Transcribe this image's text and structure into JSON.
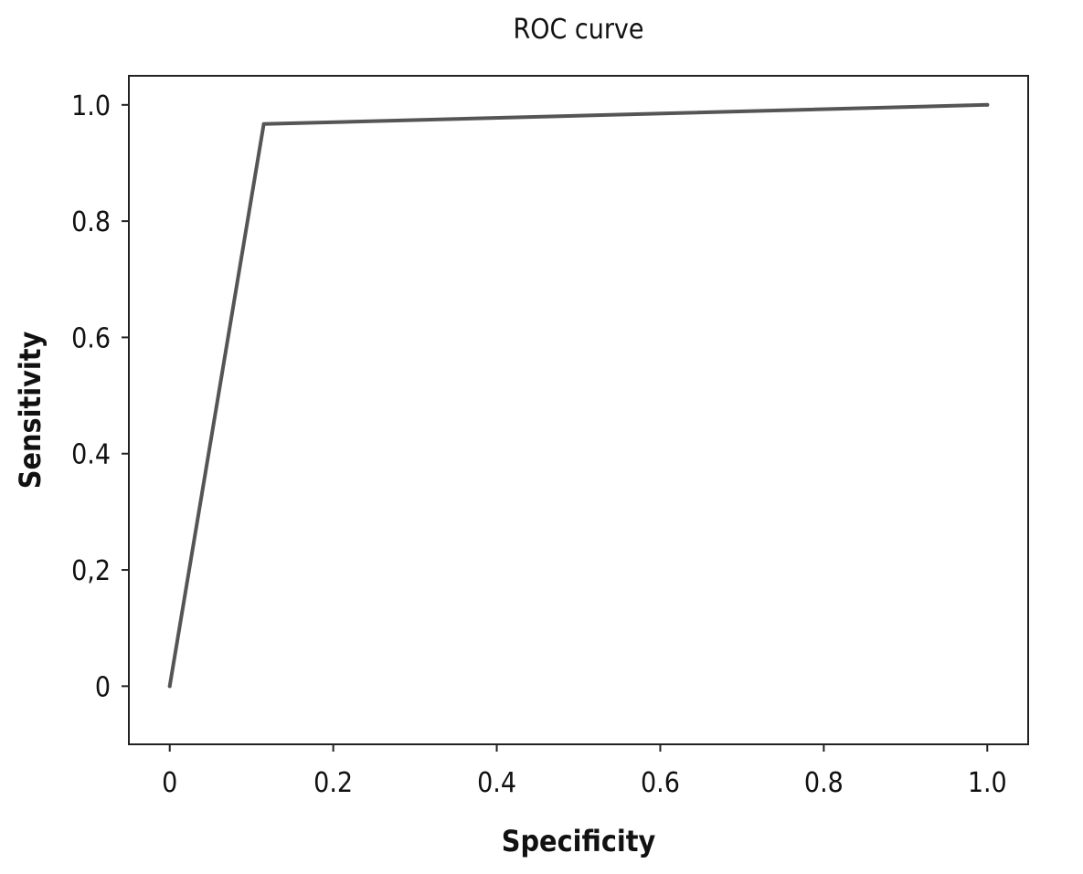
{
  "chart_data": {
    "type": "line",
    "title": "ROC curve",
    "xlabel": "Specificity",
    "ylabel": "Sensitivity",
    "xlim": [
      -0.05,
      1.05
    ],
    "ylim": [
      -0.1,
      1.05
    ],
    "x_ticks": [
      {
        "value": 0,
        "label": "0"
      },
      {
        "value": 0.2,
        "label": "0.2"
      },
      {
        "value": 0.4,
        "label": "0.4"
      },
      {
        "value": 0.6,
        "label": "0.6"
      },
      {
        "value": 0.8,
        "label": "0.8"
      },
      {
        "value": 1.0,
        "label": "1.0"
      }
    ],
    "y_ticks": [
      {
        "value": 0,
        "label": "0"
      },
      {
        "value": 0.2,
        "label": "0,2"
      },
      {
        "value": 0.4,
        "label": "0.4"
      },
      {
        "value": 0.6,
        "label": "0.6"
      },
      {
        "value": 0.8,
        "label": "0.8"
      },
      {
        "value": 1.0,
        "label": "1.0"
      }
    ],
    "grid": false,
    "series": [
      {
        "x": [
          0,
          0.115,
          1.0
        ],
        "y": [
          0,
          0.967,
          1.0
        ],
        "color": "#555555"
      }
    ]
  }
}
